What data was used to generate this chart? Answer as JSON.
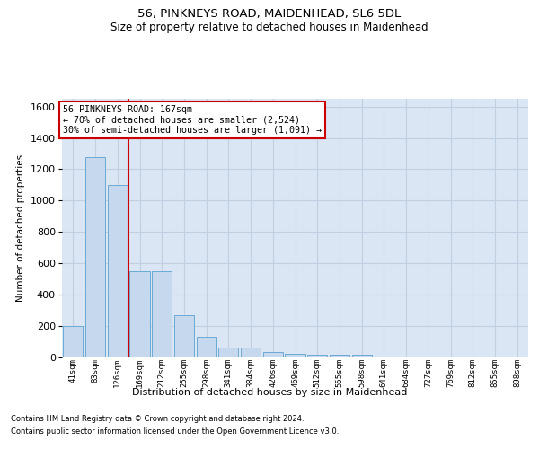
{
  "title": "56, PINKNEYS ROAD, MAIDENHEAD, SL6 5DL",
  "subtitle": "Size of property relative to detached houses in Maidenhead",
  "xlabel": "Distribution of detached houses by size in Maidenhead",
  "ylabel": "Number of detached properties",
  "footnote1": "Contains HM Land Registry data © Crown copyright and database right 2024.",
  "footnote2": "Contains public sector information licensed under the Open Government Licence v3.0.",
  "annotation_title": "56 PINKNEYS ROAD: 167sqm",
  "annotation_line2": "← 70% of detached houses are smaller (2,524)",
  "annotation_line3": "30% of semi-detached houses are larger (1,091) →",
  "bar_labels": [
    "41sqm",
    "83sqm",
    "126sqm",
    "169sqm",
    "212sqm",
    "255sqm",
    "298sqm",
    "341sqm",
    "384sqm",
    "426sqm",
    "469sqm",
    "512sqm",
    "555sqm",
    "598sqm",
    "641sqm",
    "684sqm",
    "727sqm",
    "769sqm",
    "812sqm",
    "855sqm",
    "898sqm"
  ],
  "bar_values": [
    200,
    1275,
    1100,
    550,
    550,
    265,
    130,
    60,
    60,
    30,
    20,
    15,
    15,
    15,
    0,
    0,
    0,
    0,
    0,
    0,
    0
  ],
  "bar_color": "#c5d8ee",
  "bar_edge_color": "#6aaad4",
  "vline_x": 2.5,
  "ylim": [
    0,
    1650
  ],
  "yticks": [
    0,
    200,
    400,
    600,
    800,
    1000,
    1200,
    1400,
    1600
  ],
  "grid_color": "#c0d0e0",
  "bg_color": "#dae6f3",
  "annotation_box_edgecolor": "#cc0000",
  "vline_color": "#cc0000",
  "title_fontsize": 9.5,
  "subtitle_fontsize": 8.5
}
